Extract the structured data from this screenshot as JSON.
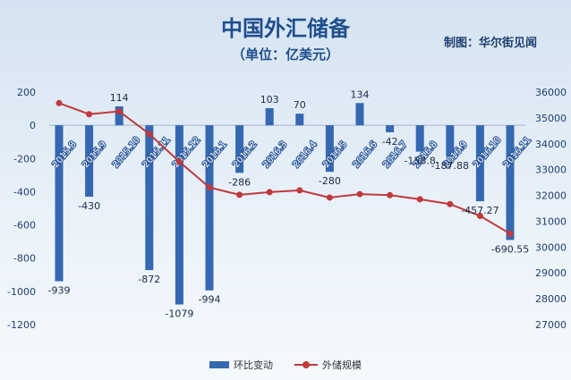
{
  "header": {
    "title": "中国外汇储备",
    "subtitle": "（单位：亿美元）",
    "source": "制图：华尔街见闻"
  },
  "colors": {
    "bar": "#3568b0",
    "line": "#c0393b",
    "axis_text": "#1f3f6e"
  },
  "chart_data": {
    "type": "bar",
    "categories": [
      "2015.8",
      "2015.9",
      "2015.10",
      "2015.11",
      "2015.12",
      "2016.1",
      "2016.2",
      "2016.3",
      "2016.4",
      "2016.5",
      "2016.6",
      "2016.7",
      "2016.8",
      "2016.9",
      "2016.10",
      "2016.11"
    ],
    "bar_labels": [
      "-939",
      "-430",
      "114",
      "-872",
      "-1079",
      "-994",
      "-286",
      "103",
      "70",
      "-280",
      "134",
      "-42",
      "-158.8",
      "-187.88",
      "-457.27",
      "-690.55"
    ],
    "series": [
      {
        "name": "环比变动",
        "type": "bar",
        "axis": "left",
        "values": [
          -939,
          -430,
          114,
          -872,
          -1079,
          -994,
          -286,
          103,
          70,
          -280,
          134,
          -42,
          -158.8,
          -187.88,
          -457.27,
          -690.55
        ]
      },
      {
        "name": "外储规模",
        "type": "line",
        "axis": "right",
        "values": [
          35574,
          35144,
          35255,
          34383,
          33304,
          32309,
          32023,
          32126,
          32197,
          31917,
          32051,
          32011,
          31852,
          31664,
          31207,
          30516
        ]
      }
    ],
    "y_left": {
      "ticks": [
        "200",
        "0",
        "-200",
        "-400",
        "-600",
        "-800",
        "-1000",
        "-1200"
      ],
      "ylim": [
        -1200,
        200
      ]
    },
    "y_right": {
      "ticks": [
        "36000",
        "35000",
        "34000",
        "33000",
        "32000",
        "31000",
        "30000",
        "29000",
        "28000",
        "27000"
      ],
      "ylim": [
        27000,
        36000
      ]
    },
    "grid": false,
    "legend_position": "bottom"
  }
}
